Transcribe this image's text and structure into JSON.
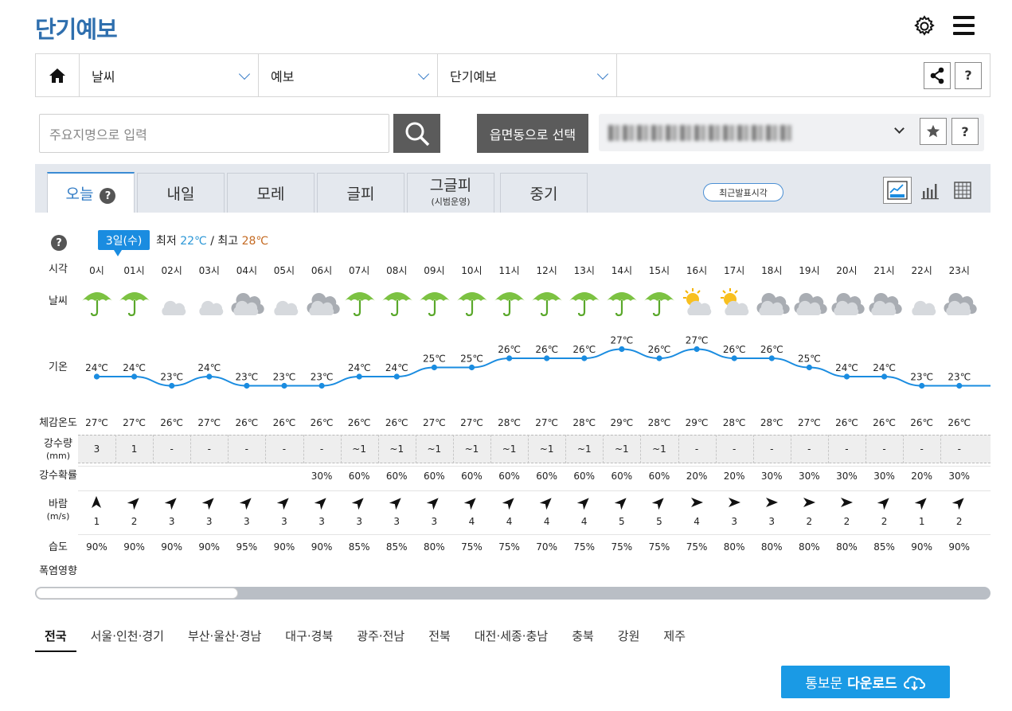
{
  "header": {
    "title": "단기예보"
  },
  "nav": {
    "items": [
      "날씨",
      "예보",
      "단기예보"
    ],
    "help": "?"
  },
  "search": {
    "placeholder": "주요지명으로 입력",
    "emd_label": "읍면동으로 선택",
    "help": "?"
  },
  "tabs": [
    {
      "label": "오늘",
      "help": "?"
    },
    {
      "label": "내일"
    },
    {
      "label": "모레"
    },
    {
      "label": "글피"
    },
    {
      "label": "그글피",
      "sub": "(시범운영)"
    },
    {
      "label": "중기"
    }
  ],
  "recent_label": "최근발표시각",
  "forecast": {
    "help": "?",
    "day_badge": "3일(수)",
    "min_label": "최저",
    "min_temp": "22℃",
    "sep": "/",
    "max_label": "최고",
    "max_temp": "28℃",
    "row_labels": {
      "time": "시각",
      "weather": "날씨",
      "temp": "기온",
      "feels": "체감온도",
      "precip": "강수량",
      "precip_unit": "(mm)",
      "prob": "강수확률",
      "wind": "바람",
      "wind_unit": "(m/s)",
      "humidity": "습도",
      "heat": "폭염영향"
    },
    "hours": [
      "0시",
      "01시",
      "02시",
      "03시",
      "04시",
      "05시",
      "06시",
      "07시",
      "08시",
      "09시",
      "10시",
      "11시",
      "12시",
      "13시",
      "14시",
      "15시",
      "16시",
      "17시",
      "18시",
      "19시",
      "20시",
      "21시",
      "22시",
      "23시"
    ],
    "weather": [
      "rain",
      "rain",
      "moon-cloud",
      "moon-cloud",
      "cloud",
      "moon-cloud",
      "cloud",
      "rain",
      "rain",
      "rain",
      "rain",
      "rain",
      "rain",
      "rain",
      "rain",
      "rain",
      "sun-cloud",
      "sun-cloud",
      "cloud",
      "cloud",
      "cloud",
      "cloud",
      "moon-cloud",
      "cloud"
    ],
    "temps": [
      24,
      24,
      23,
      24,
      23,
      23,
      23,
      24,
      24,
      25,
      25,
      26,
      26,
      26,
      27,
      26,
      27,
      26,
      26,
      25,
      24,
      24,
      23,
      23
    ],
    "temp_labels": [
      "24℃",
      "24℃",
      "23℃",
      "24℃",
      "23℃",
      "23℃",
      "23℃",
      "24℃",
      "24℃",
      "25℃",
      "25℃",
      "26℃",
      "26℃",
      "26℃",
      "27℃",
      "26℃",
      "27℃",
      "26℃",
      "26℃",
      "25℃",
      "24℃",
      "24℃",
      "23℃",
      "23℃"
    ],
    "feels": [
      "27℃",
      "27℃",
      "26℃",
      "27℃",
      "26℃",
      "26℃",
      "26℃",
      "26℃",
      "26℃",
      "27℃",
      "27℃",
      "28℃",
      "27℃",
      "28℃",
      "29℃",
      "28℃",
      "29℃",
      "28℃",
      "28℃",
      "27℃",
      "26℃",
      "26℃",
      "26℃",
      "26℃"
    ],
    "precip": [
      "3",
      "1",
      "-",
      "-",
      "-",
      "-",
      "-",
      "~1",
      "~1",
      "~1",
      "~1",
      "~1",
      "~1",
      "~1",
      "~1",
      "~1",
      "-",
      "-",
      "-",
      "-",
      "-",
      "-",
      "-",
      "-"
    ],
    "prob": [
      "",
      "",
      "",
      "",
      "",
      "",
      "30%",
      "60%",
      "60%",
      "60%",
      "60%",
      "60%",
      "60%",
      "60%",
      "60%",
      "60%",
      "20%",
      "20%",
      "30%",
      "30%",
      "30%",
      "30%",
      "20%",
      "30%"
    ],
    "wind_dir_deg": [
      0,
      45,
      45,
      45,
      45,
      45,
      45,
      45,
      45,
      45,
      45,
      45,
      45,
      45,
      45,
      45,
      90,
      90,
      90,
      90,
      90,
      45,
      45,
      45
    ],
    "wind_speed": [
      "1",
      "2",
      "3",
      "3",
      "3",
      "3",
      "3",
      "3",
      "3",
      "3",
      "4",
      "4",
      "4",
      "4",
      "5",
      "5",
      "4",
      "3",
      "3",
      "2",
      "2",
      "2",
      "1",
      "2"
    ],
    "humidity": [
      "90%",
      "90%",
      "90%",
      "90%",
      "95%",
      "90%",
      "90%",
      "85%",
      "85%",
      "80%",
      "75%",
      "75%",
      "70%",
      "75%",
      "75%",
      "75%",
      "75%",
      "80%",
      "80%",
      "80%",
      "80%",
      "85%",
      "90%",
      "90%"
    ]
  },
  "regions": [
    "전국",
    "서울·인천·경기",
    "부산·울산·경남",
    "대구·경북",
    "광주·전남",
    "전북",
    "대전·세종·충남",
    "충북",
    "강원",
    "제주"
  ],
  "download": {
    "prefix": "통보문",
    "label": "다운로드"
  },
  "colors": {
    "accent": "#1a8ce0",
    "temp_line": "#1a8ce0",
    "title": "#2f6fae",
    "min": "#2a96d6",
    "max": "#c46a22"
  }
}
